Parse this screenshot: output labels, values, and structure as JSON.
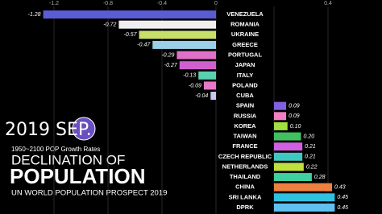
{
  "chart_data": {
    "type": "bar",
    "orientation": "horizontal",
    "date_label": "2019 SEP.",
    "subtitle": "1950~2100 POP Growth Rates",
    "title_line1": "DECLINATION OF",
    "title": "POPULATION",
    "source": "UN WORLD POPULATION PROSPECT 2019",
    "categories": [
      "VENEZUELA",
      "ROMANIA",
      "UKRAINE",
      "GREECE",
      "PORTUGAL",
      "JAPAN",
      "ITALY",
      "POLAND",
      "CUBA",
      "SPAIN",
      "RUSSIA",
      "KOREA",
      "TAIWAN",
      "FRANCE",
      "CZECH REPUBLIC",
      "NETHERLANDS",
      "THAILAND",
      "CHINA",
      "SRI LANKA",
      "DPRK"
    ],
    "values": [
      -1.28,
      -0.72,
      -0.57,
      -0.47,
      -0.29,
      -0.27,
      -0.13,
      -0.09,
      -0.04,
      0.09,
      0.09,
      0.1,
      0.2,
      0.21,
      0.21,
      0.22,
      0.28,
      0.43,
      0.45,
      0.45
    ],
    "value_labels": [
      "-1.28",
      "-0.72",
      "-0.57",
      "-0.47",
      "-0.29",
      "-0.27",
      "-0.13",
      "-0.09",
      "-0.04",
      "0.09",
      "0.09",
      "0.10",
      "0.20",
      "0.21",
      "0.21",
      "0.22",
      "0.28",
      "0.43",
      "0.45",
      "0.45"
    ],
    "colors": [
      "#5b5bd6",
      "#f0f0f0",
      "#c8e06a",
      "#9cd0e8",
      "#e070c8",
      "#d060d0",
      "#5ad0b0",
      "#e878c8",
      "#c8c8f0",
      "#8060e0",
      "#f080c0",
      "#a0e040",
      "#40c060",
      "#d060e0",
      "#40c8c0",
      "#c0e040",
      "#40d0a0",
      "#f08040",
      "#30c0e0",
      "#60c0f0"
    ],
    "xlim": [
      -1.6,
      0.8
    ],
    "xticks": [
      -1.2,
      -0.8,
      -0.4,
      0,
      0.4
    ],
    "grid": true
  }
}
